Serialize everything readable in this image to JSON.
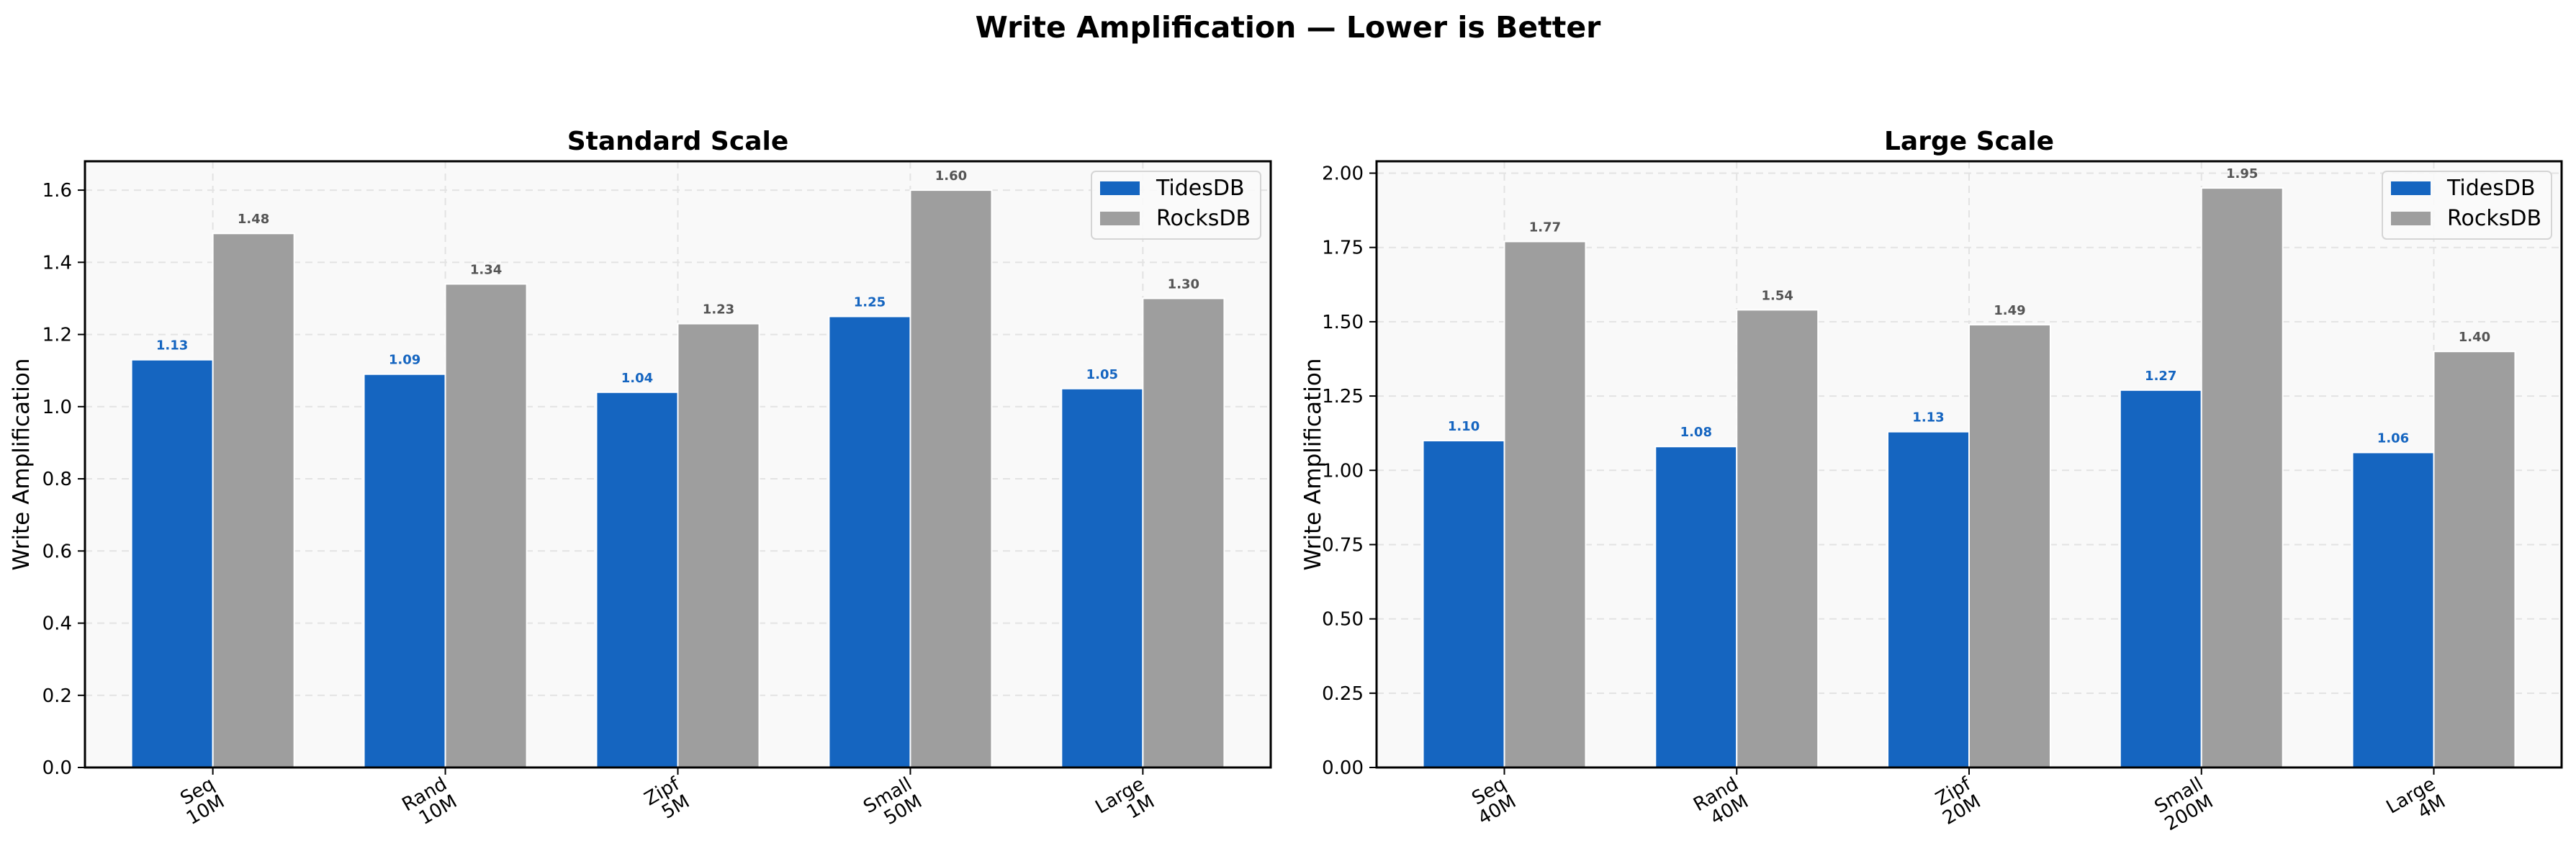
{
  "figure": {
    "suptitle": "Write Amplification — Lower is Better",
    "colors": {
      "tidesdb": "#1565c0",
      "rocksdb": "#9e9e9e",
      "tidesdb_label": "#1565c0",
      "rocksdb_label": "#555555",
      "axes_bg": "#f9f9f9",
      "grid": "#e3e3e3"
    }
  },
  "chart_data": [
    {
      "type": "bar",
      "title": "Standard Scale",
      "xlabel": "",
      "ylabel": "Write Amplification",
      "categories": [
        "Seq\n10M",
        "Rand\n10M",
        "Zipf\n5M",
        "Small\n50M",
        "Large\n1M"
      ],
      "series": [
        {
          "name": "TidesDB",
          "values": [
            1.13,
            1.09,
            1.04,
            1.25,
            1.05
          ]
        },
        {
          "name": "RocksDB",
          "values": [
            1.48,
            1.34,
            1.23,
            1.6,
            1.3
          ]
        }
      ],
      "value_labels": {
        "TidesDB": [
          "1.13",
          "1.09",
          "1.04",
          "1.25",
          "1.05"
        ],
        "RocksDB": [
          "1.48",
          "1.34",
          "1.23",
          "1.60",
          "1.30"
        ]
      },
      "yticks": [
        "0.0",
        "0.2",
        "0.4",
        "0.6",
        "0.8",
        "1.0",
        "1.2",
        "1.4",
        "1.6"
      ],
      "ytick_values": [
        0,
        0.2,
        0.4,
        0.6,
        0.8,
        1.0,
        1.2,
        1.4,
        1.6
      ],
      "ylim": [
        0,
        1.68
      ],
      "grid": true,
      "legend": {
        "position": "upper right",
        "entries": [
          "TidesDB",
          "RocksDB"
        ]
      }
    },
    {
      "type": "bar",
      "title": "Large Scale",
      "xlabel": "",
      "ylabel": "Write Amplification",
      "categories": [
        "Seq\n40M",
        "Rand\n40M",
        "Zipf\n20M",
        "Small\n200M",
        "Large\n4M"
      ],
      "series": [
        {
          "name": "TidesDB",
          "values": [
            1.1,
            1.08,
            1.13,
            1.27,
            1.06
          ]
        },
        {
          "name": "RocksDB",
          "values": [
            1.77,
            1.54,
            1.49,
            1.95,
            1.4
          ]
        }
      ],
      "value_labels": {
        "TidesDB": [
          "1.10",
          "1.08",
          "1.13",
          "1.27",
          "1.06"
        ],
        "RocksDB": [
          "1.77",
          "1.54",
          "1.49",
          "1.95",
          "1.40"
        ]
      },
      "yticks": [
        "0.00",
        "0.25",
        "0.50",
        "0.75",
        "1.00",
        "1.25",
        "1.50",
        "1.75",
        "2.00"
      ],
      "ytick_values": [
        0,
        0.25,
        0.5,
        0.75,
        1.0,
        1.25,
        1.5,
        1.75,
        2.0
      ],
      "ylim": [
        0,
        2.04
      ],
      "grid": true,
      "legend": {
        "position": "upper right",
        "entries": [
          "TidesDB",
          "RocksDB"
        ]
      }
    }
  ]
}
